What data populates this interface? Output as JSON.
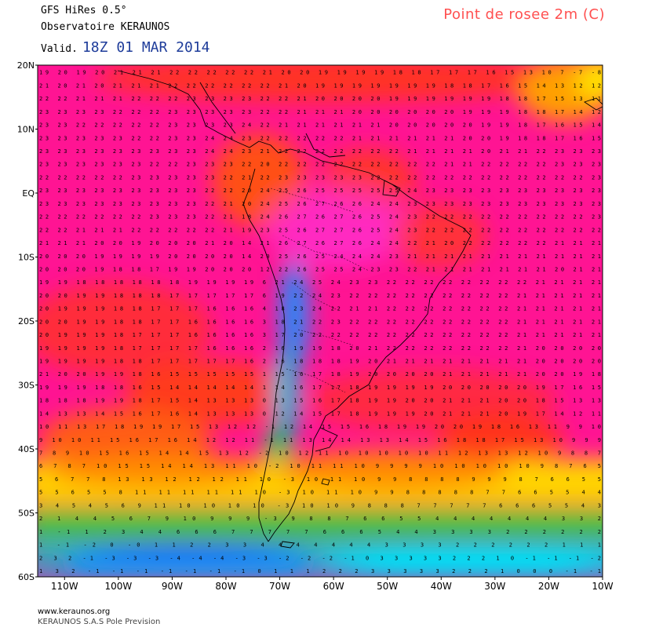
{
  "header": {
    "model": "GFS HiRes 0.5°",
    "observatory": "Observatoire KERAUNOS",
    "valid_label": "Valid.",
    "valid_date": "18Z 01 MAR 2014",
    "title": "Point de rosee 2m (C)"
  },
  "footer": {
    "site": "www.keraunos.org",
    "company": "KERAUNOS S.A.S Pole Prevision"
  },
  "map": {
    "lat_ticks": [
      "20N",
      "10N",
      "EQ",
      "10S",
      "20S",
      "30S",
      "40S",
      "50S",
      "60S"
    ],
    "lon_ticks": [
      "110W",
      "100W",
      "90W",
      "80W",
      "70W",
      "60W",
      "50W",
      "40W",
      "30W",
      "20W",
      "10W"
    ],
    "lat_range": [
      -60,
      20
    ],
    "lon_range": [
      -115,
      -10
    ],
    "colors": {
      "warm": "#ff1493",
      "hot": "#ff3c00",
      "mild": "#ff8c00",
      "cool": "#ffe000",
      "cold": "#00c853",
      "colder": "#00bcd4",
      "coldest": "#1e5cff",
      "land_outline": "#000000"
    },
    "value_rows": [
      "19 20 19 20 21 21 21 22 22 22 22 22 21 20 20 19 19 19 19 18 18 17 17 17 16 15 13 10 7 -7 -8",
      "21 20 21 20 21 21 21 22 22 22 22 22 22 21 20 19 19 19 19 19 19 19 18 18 17 16 15 14 13 12 12",
      "22 22 21 21 21 22 22 22 23 23 23 23 22 22 21 20 20 20 20 19 19 19 19 19 19 18 18 17 15 13 11",
      "23 23 23 23 22 22 22 23 23 23 23 23 22 22 21 21 21 20 20 20 20 20 20 19 19 19 18 18 17 14 12",
      "23 23 22 22 22 22 22 23 23 23 23 24 22 21 21 21 21 21 21 20 20 20 20 20 19 19 18 17 16 15 14",
      "23 23 23 23 23 22 22 23 23 24 24 23 22 22 22 22 22 21 21 21 21 21 21 20 20 19 18 18 17 16 15",
      "23 23 23 23 23 23 23 23 23 24 24 23 21 22 22 22 22 22 22 22 21 21 21 21 20 21 21 22 23 23 23",
      "23 23 23 23 23 23 22 22 23 23 23 22 20 22 22 22 22 22 22 22 22 22 21 21 22 22 22 22 23 23 23",
      "22 22 22 22 22 23 23 23 23 23 22 21 22 23 23 23 23 23 22 22 22 22 22 22 22 22 22 22 22 22 23",
      "23 23 23 23 23 23 23 23 23 22 22 20 24 25 26 25 25 25 25 25 24 23 23 23 23 23 23 23 23 23 23",
      "23 23 23 23 23 23 23 23 23 22 21 20 24 25 26 27 26 26 24 24 23 23 23 23 23 23 23 23 23 23 23",
      "22 22 22 22 22 22 23 23 23 22 21 18 24 26 27 26 27 26 25 24 23 22 22 22 22 22 22 22 22 22 23",
      "22 22 21 21 21 22 22 22 22 22 21 19 23 25 26 27 27 26 25 24 23 22 22 22 22 22 22 22 22 22 22",
      "21 21 21 20 20 19 20 20 20 21 20 14 21 26 27 26 27 26 24 24 22 21 20 22 22 22 22 22 21 21 21",
      "20 20 20 19 19 19 19 20 20 20 20 14 20 25 26 25 24 24 24 23 21 21 21 21 21 21 21 21 21 21 21",
      "20 20 20 19 18 18 17 19 19 20 20 20 12 22 26 25 25 24 23 23 22 21 21 21 21 21 21 21 20 21 21",
      "19 19 18 18 18 18 18 18 19 19 19 19 6 21 24 25 24 23 23 22 22 22 22 22 22 22 22 21 21 21 21",
      "20 20 19 19 18 18 18 17 17 17 17 17 6 19 22 24 23 22 22 22 22 22 22 22 22 22 21 21 21 21 21",
      "20 19 19 19 18 18 17 17 17 16 16 16 4 18 23 24 22 21 21 22 22 22 22 22 22 22 21 21 21 21 21",
      "20 20 19 19 18 18 17 17 16 16 16 16 3 18 21 22 23 22 22 22 22 22 22 22 22 22 21 21 21 21 21",
      "20 19 19 19 18 17 17 17 16 16 16 16 3 17 20 22 22 22 22 22 22 22 22 22 22 22 21 21 21 21 21",
      "19 19 19 19 18 17 17 17 17 16 16 16 2 16 19 19 18 20 21 22 22 22 22 22 22 22 21 20 20 20 20",
      "19 19 19 19 18 18 17 17 17 17 17 16 2 16 18 18 18 19 20 21 21 21 21 21 21 21 21 20 20 20 20",
      "21 20 20 19 19 18 16 15 15 15 15 15 1 15 16 17 18 19 20 20 20 20 21 21 21 21 21 20 20 19 18",
      "19 19 19 18 18 16 15 14 14 14 14 14 1 14 16 17 17 18 19 19 19 19 20 20 20 20 20 19 17 16 15",
      "18 18 18 19 19 18 17 15 14 13 13 13 0 13 15 16 17 18 19 19 20 20 21 21 21 20 20 18 15 13 13",
      "14 13 13 14 15 16 17 16 14 13 13 13 0 12 14 15 17 18 19 19 19 20 21 21 21 20 19 17 14 12 11",
      "10 11 13 17 18 19 19 17 15 13 12 12 -1 12 14 15 15 16 18 19 19 20 20 19 18 16 13 11 9 9 10",
      "9 10 10 11 15 16 17 16 14 12 12 11 -1 11 13 14 14 13 13 14 15 16 18 18 17 15 13 10 9 9 9",
      "7 8 9 10 15 16 15 14 14 15 13 12 -2 10 12 11 10 10 10 10 10 11 12 13 13 12 10 9 8 8 7",
      "6 7 8 7 10 15 15 14 14 13 11 10 -2 10 11 11 10 9 9 9 9 10 10 10 10 10 9 8 7 6 5",
      "5 6 7 7 8 13 13 12 12 12 11 10 -3 10 11 10 9 9 8 8 8 8 9 9 9 8 7 6 6 5 5",
      "5 5 6 5 5 8 11 11 11 11 11 10 -3 10 11 10 9 9 8 8 8 8 8 7 7 6 6 5 5 4 4",
      "3 4 5 4 5 6 9 11 10 10 10 10 -3 10 10 9 8 8 8 7 7 7 7 7 6 6 6 5 5 4 3",
      "2 1 4 4 5 6 7 9 10 9 9 9 -3 9 8 8 7 6 6 5 5 4 4 4 4 4 4 4 3 3 2",
      "1 -1 1 2 3 4 4 6 6 6 7 7 7 7 7 6 6 6 5 4 4 3 3 3 3 2 2 2 2 2 2",
      "1 -1 -2 0 -0 1 1 2 2 3 3 4 4 4 4 4 4 4 3 3 3 3 2 2 2 2 2 2 1 1 1",
      "2 3 2 -1 -3 -3 -3 -4 -4 -4 -3 -3 -2 -2 -2 -1 0 3 3 3 3 3 2 2 2 1 0 -1 -1 -1 -2",
      "1 3 2 -1 -1 -1 -1 -1 -1 -1 0 1 1 1 2 2 2 3 3 3 3 3 2 2 2 1 0 0 0 -1 -1"
    ]
  }
}
